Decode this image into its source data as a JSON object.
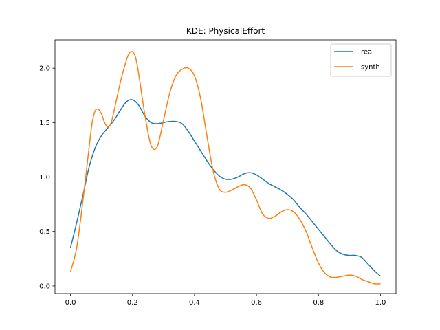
{
  "chart_data": {
    "type": "line",
    "title": "KDE: PhysicalEffort",
    "xlabel": "",
    "ylabel": "",
    "xlim": [
      -0.05,
      1.05
    ],
    "ylim": [
      -0.07,
      2.26
    ],
    "xticks": [
      0.0,
      0.2,
      0.4,
      0.6,
      0.8,
      1.0
    ],
    "xtick_labels": [
      "0.0",
      "0.2",
      "0.4",
      "0.6",
      "0.8",
      "1.0"
    ],
    "yticks": [
      0.0,
      0.5,
      1.0,
      1.5,
      2.0
    ],
    "ytick_labels": [
      "0.0",
      "0.5",
      "1.0",
      "1.5",
      "2.0"
    ],
    "legend_position": "top-right",
    "grid": false,
    "series": [
      {
        "name": "real",
        "color": "#1f77b4",
        "x": [
          0.0,
          0.02,
          0.04,
          0.06,
          0.08,
          0.1,
          0.12,
          0.14,
          0.16,
          0.18,
          0.2,
          0.22,
          0.24,
          0.26,
          0.28,
          0.3,
          0.32,
          0.34,
          0.36,
          0.38,
          0.4,
          0.42,
          0.44,
          0.46,
          0.48,
          0.5,
          0.52,
          0.54,
          0.56,
          0.58,
          0.6,
          0.62,
          0.64,
          0.66,
          0.68,
          0.7,
          0.72,
          0.74,
          0.76,
          0.78,
          0.8,
          0.82,
          0.84,
          0.86,
          0.88,
          0.9,
          0.92,
          0.94,
          0.96,
          0.98,
          1.0
        ],
        "y": [
          0.35,
          0.58,
          0.83,
          1.09,
          1.27,
          1.38,
          1.45,
          1.52,
          1.61,
          1.69,
          1.71,
          1.66,
          1.56,
          1.5,
          1.49,
          1.5,
          1.51,
          1.51,
          1.49,
          1.42,
          1.33,
          1.24,
          1.15,
          1.07,
          1.01,
          0.98,
          0.98,
          1.0,
          1.03,
          1.04,
          1.02,
          0.98,
          0.94,
          0.91,
          0.88,
          0.84,
          0.79,
          0.72,
          0.66,
          0.59,
          0.52,
          0.45,
          0.38,
          0.32,
          0.29,
          0.28,
          0.28,
          0.26,
          0.2,
          0.14,
          0.09
        ]
      },
      {
        "name": "synth",
        "color": "#ff7f0e",
        "x": [
          0.0,
          0.02,
          0.04,
          0.06,
          0.07,
          0.08,
          0.09,
          0.1,
          0.11,
          0.12,
          0.13,
          0.14,
          0.16,
          0.18,
          0.19,
          0.2,
          0.21,
          0.22,
          0.24,
          0.26,
          0.28,
          0.3,
          0.32,
          0.34,
          0.36,
          0.38,
          0.4,
          0.42,
          0.44,
          0.46,
          0.48,
          0.5,
          0.52,
          0.54,
          0.56,
          0.58,
          0.6,
          0.62,
          0.64,
          0.66,
          0.68,
          0.7,
          0.72,
          0.74,
          0.76,
          0.78,
          0.8,
          0.82,
          0.84,
          0.86,
          0.88,
          0.9,
          0.92,
          0.94,
          0.96,
          0.98,
          1.0
        ],
        "y": [
          0.13,
          0.35,
          0.78,
          1.27,
          1.5,
          1.61,
          1.62,
          1.58,
          1.5,
          1.46,
          1.49,
          1.6,
          1.86,
          2.07,
          2.14,
          2.15,
          2.1,
          1.95,
          1.57,
          1.29,
          1.28,
          1.52,
          1.77,
          1.93,
          1.99,
          2.0,
          1.93,
          1.72,
          1.38,
          1.06,
          0.89,
          0.86,
          0.88,
          0.91,
          0.93,
          0.9,
          0.79,
          0.66,
          0.62,
          0.64,
          0.68,
          0.7,
          0.68,
          0.61,
          0.5,
          0.35,
          0.21,
          0.12,
          0.08,
          0.08,
          0.09,
          0.1,
          0.09,
          0.06,
          0.04,
          0.02,
          0.02
        ]
      }
    ]
  }
}
